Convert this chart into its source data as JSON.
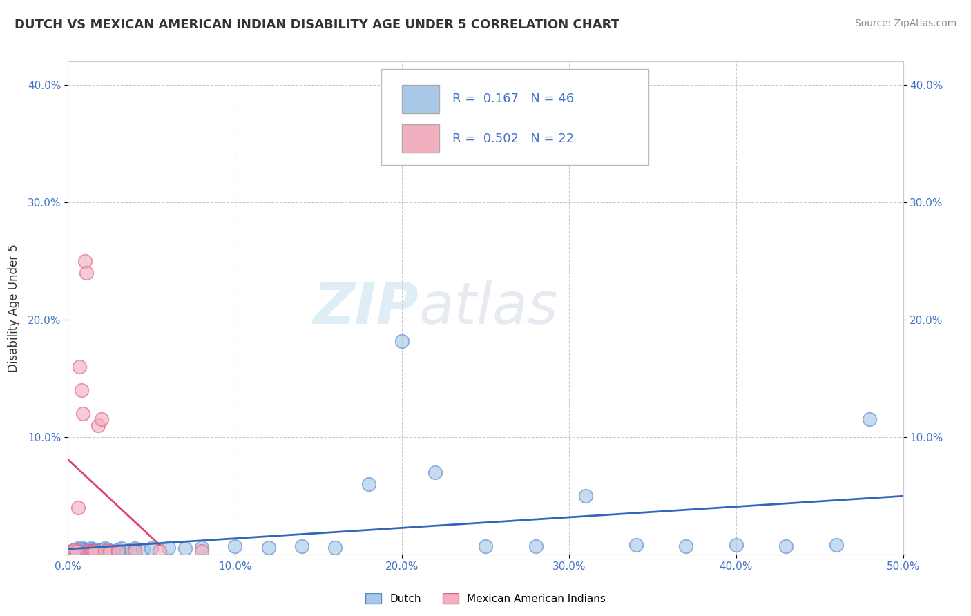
{
  "title": "DUTCH VS MEXICAN AMERICAN INDIAN DISABILITY AGE UNDER 5 CORRELATION CHART",
  "source": "Source: ZipAtlas.com",
  "ylabel": "Disability Age Under 5",
  "xlim": [
    0.0,
    0.5
  ],
  "ylim": [
    0.0,
    0.42
  ],
  "xticks": [
    0.0,
    0.1,
    0.2,
    0.3,
    0.4,
    0.5
  ],
  "xticklabels": [
    "0.0%",
    "10.0%",
    "20.0%",
    "30.0%",
    "40.0%",
    "50.0%"
  ],
  "yticks": [
    0.0,
    0.1,
    0.2,
    0.3,
    0.4
  ],
  "yticklabels": [
    "",
    "10.0%",
    "20.0%",
    "30.0%",
    "40.0%"
  ],
  "dutch_color": "#a8c8e8",
  "dutch_edge_color": "#5588cc",
  "mexican_color": "#f0b0c0",
  "mexican_edge_color": "#e06080",
  "trend_dutch_color": "#3366bb",
  "trend_mexican_color": "#e04070",
  "watermark_zip_color": "#c8e0f0",
  "watermark_atlas_color": "#d0d8e8",
  "background_color": "#ffffff",
  "grid_color": "#cccccc",
  "tick_color": "#4472c4",
  "title_color": "#333333",
  "source_color": "#888888",
  "dutch_x": [
    0.002,
    0.004,
    0.005,
    0.006,
    0.007,
    0.008,
    0.009,
    0.01,
    0.011,
    0.012,
    0.013,
    0.014,
    0.015,
    0.016,
    0.017,
    0.018,
    0.02,
    0.022,
    0.024,
    0.026,
    0.03,
    0.032,
    0.035,
    0.038,
    0.04,
    0.045,
    0.05,
    0.06,
    0.07,
    0.08,
    0.1,
    0.12,
    0.14,
    0.16,
    0.18,
    0.2,
    0.22,
    0.25,
    0.28,
    0.31,
    0.34,
    0.37,
    0.4,
    0.43,
    0.46,
    0.48
  ],
  "dutch_y": [
    0.003,
    0.004,
    0.003,
    0.005,
    0.004,
    0.003,
    0.005,
    0.004,
    0.003,
    0.004,
    0.003,
    0.005,
    0.004,
    0.003,
    0.004,
    0.003,
    0.004,
    0.005,
    0.004,
    0.003,
    0.004,
    0.005,
    0.003,
    0.004,
    0.005,
    0.004,
    0.005,
    0.006,
    0.005,
    0.006,
    0.007,
    0.006,
    0.007,
    0.006,
    0.06,
    0.182,
    0.07,
    0.007,
    0.007,
    0.05,
    0.008,
    0.007,
    0.008,
    0.007,
    0.008,
    0.115
  ],
  "mexican_x": [
    0.003,
    0.004,
    0.005,
    0.006,
    0.007,
    0.008,
    0.009,
    0.01,
    0.011,
    0.012,
    0.013,
    0.014,
    0.015,
    0.016,
    0.018,
    0.02,
    0.022,
    0.025,
    0.03,
    0.04,
    0.055,
    0.08
  ],
  "mexican_y": [
    0.003,
    0.004,
    0.003,
    0.04,
    0.16,
    0.14,
    0.12,
    0.25,
    0.24,
    0.003,
    0.003,
    0.003,
    0.003,
    0.003,
    0.11,
    0.115,
    0.003,
    0.003,
    0.003,
    0.003,
    0.003,
    0.003
  ],
  "legend_text1": "R =  0.167   N = 46",
  "legend_text2": "R =  0.502   N = 22"
}
